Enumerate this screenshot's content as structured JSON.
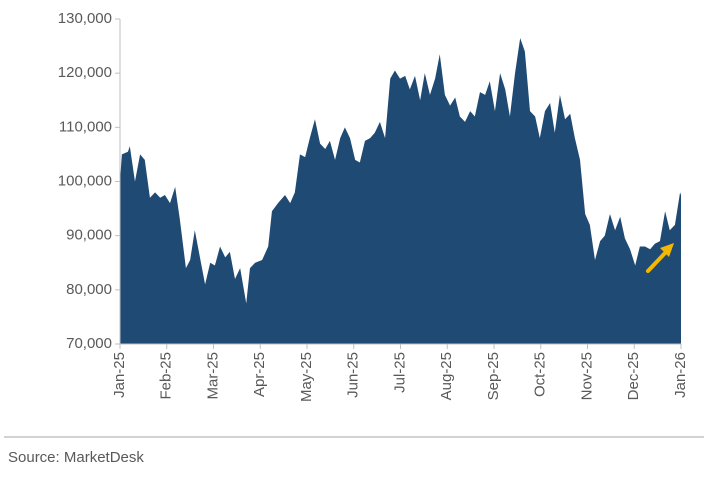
{
  "chart_data": {
    "type": "area",
    "color": "#1f4a73",
    "source": "Source: MarketDesk",
    "x": [
      0,
      0.04,
      0.17,
      0.21,
      0.32,
      0.43,
      0.53,
      0.64,
      0.75,
      0.86,
      0.96,
      1.07,
      1.18,
      1.28,
      1.41,
      1.5,
      1.6,
      1.71,
      1.82,
      1.93,
      2.03,
      2.14,
      2.25,
      2.35,
      2.46,
      2.57,
      2.7,
      2.78,
      2.89,
      3.04,
      3.17,
      3.25,
      3.38,
      3.53,
      3.64,
      3.74,
      3.85,
      3.96,
      4.06,
      4.17,
      4.28,
      4.39,
      4.49,
      4.6,
      4.71,
      4.81,
      4.92,
      5.03,
      5.13,
      5.24,
      5.35,
      5.45,
      5.56,
      5.67,
      5.78,
      5.88,
      5.99,
      6.1,
      6.2,
      6.31,
      6.42,
      6.52,
      6.63,
      6.74,
      6.84,
      6.95,
      7.06,
      7.17,
      7.27,
      7.38,
      7.49,
      7.59,
      7.7,
      7.81,
      7.91,
      8.02,
      8.13,
      8.24,
      8.34,
      8.45,
      8.56,
      8.66,
      8.77,
      8.88,
      8.98,
      9.09,
      9.2,
      9.3,
      9.41,
      9.52,
      9.63,
      9.73,
      9.84,
      9.95,
      10.05,
      10.16,
      10.27,
      10.37,
      10.48,
      10.59,
      10.7,
      10.8,
      10.91,
      11.02,
      11.12,
      11.23,
      11.34,
      11.44,
      11.55,
      11.66,
      11.76,
      11.87,
      11.98,
      12
    ],
    "values": [
      100000,
      105000,
      105500,
      106500,
      100000,
      105000,
      104000,
      97000,
      98000,
      97000,
      97500,
      96000,
      99000,
      93000,
      84000,
      85500,
      91000,
      86000,
      81000,
      85000,
      84500,
      88000,
      86000,
      87000,
      82000,
      84000,
      77500,
      84000,
      85000,
      85500,
      88000,
      94500,
      96000,
      97500,
      96000,
      98000,
      105000,
      104500,
      108000,
      111500,
      107000,
      106000,
      107500,
      104000,
      108000,
      110000,
      108000,
      104000,
      103500,
      107500,
      108000,
      109000,
      111000,
      108000,
      119000,
      120500,
      119000,
      119500,
      117000,
      119500,
      115000,
      120000,
      116000,
      119000,
      123500,
      116000,
      114000,
      115500,
      112000,
      111000,
      113000,
      112000,
      116500,
      116000,
      118500,
      113000,
      120000,
      117000,
      112000,
      120000,
      126500,
      124000,
      113000,
      112000,
      108000,
      113000,
      114500,
      109000,
      116000,
      111500,
      112500,
      108000,
      104000,
      94000,
      92000,
      85500,
      89000,
      90000,
      94000,
      91000,
      93500,
      89500,
      87500,
      84500,
      88000,
      88000,
      87500,
      88500,
      89000,
      94500,
      91000,
      92000,
      98000,
      97500
    ],
    "xlim": [
      0,
      12
    ],
    "xticks": [
      {
        "value": 0,
        "label": "Jan-25"
      },
      {
        "value": 1,
        "label": "Feb-25"
      },
      {
        "value": 2,
        "label": "Mar-25"
      },
      {
        "value": 3,
        "label": "Apr-25"
      },
      {
        "value": 4,
        "label": "May-25"
      },
      {
        "value": 5,
        "label": "Jun-25"
      },
      {
        "value": 6,
        "label": "Jul-25"
      },
      {
        "value": 7,
        "label": "Aug-25"
      },
      {
        "value": 8,
        "label": "Sep-25"
      },
      {
        "value": 9,
        "label": "Oct-25"
      },
      {
        "value": 10,
        "label": "Nov-25"
      },
      {
        "value": 11,
        "label": "Dec-25"
      },
      {
        "value": 12,
        "label": "Jan-26"
      }
    ],
    "ylim": [
      70000,
      130000
    ],
    "yticks": [
      {
        "value": 70000,
        "label": "70,000"
      },
      {
        "value": 80000,
        "label": "80,000"
      },
      {
        "value": 90000,
        "label": "90,000"
      },
      {
        "value": 100000,
        "label": "100,000"
      },
      {
        "value": 110000,
        "label": "110,000"
      },
      {
        "value": 120000,
        "label": "120,000"
      },
      {
        "value": 130000,
        "label": "130,000"
      }
    ]
  }
}
